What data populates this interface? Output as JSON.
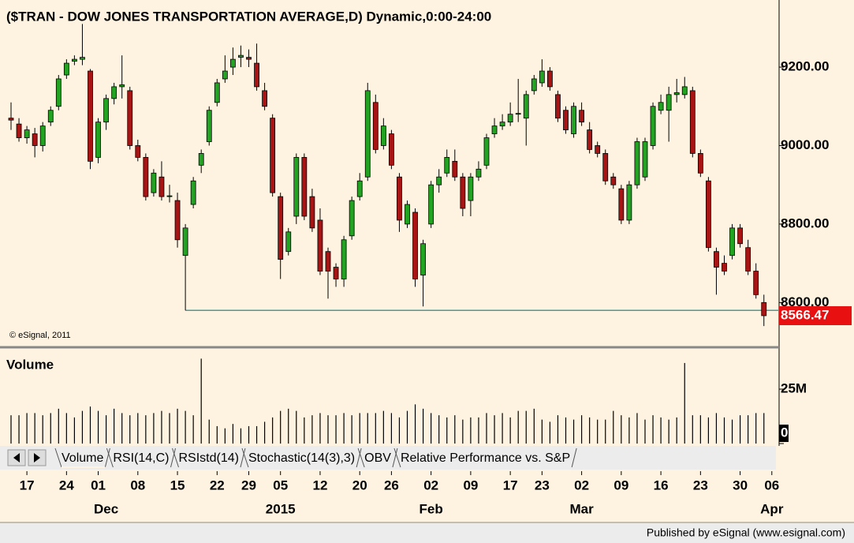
{
  "chart_data": {
    "type": "candlestick",
    "title": "($TRAN - DOW JONES TRANSPORTATION AVERAGE,D) Dynamic,0:00-24:00",
    "copyright": "© eSignal, 2011",
    "up_color": "#22a322",
    "down_color": "#a81414",
    "ylim": [
      8490,
      9355
    ],
    "yticks": [
      {
        "value": 8600,
        "label": "8600.00"
      },
      {
        "value": 8800,
        "label": "8800.00"
      },
      {
        "value": 9000,
        "label": "9000.00"
      },
      {
        "value": 9200,
        "label": "9200.00"
      }
    ],
    "last_price": 8566.47,
    "hline": 8580,
    "candles": [
      [
        9070,
        9110,
        9040,
        9065
      ],
      [
        9055,
        9070,
        9010,
        9020
      ],
      [
        9020,
        9050,
        9005,
        9040
      ],
      [
        9030,
        9045,
        8970,
        9000
      ],
      [
        9000,
        9060,
        8985,
        9050
      ],
      [
        9060,
        9100,
        9050,
        9090
      ],
      [
        9100,
        9180,
        9090,
        9170
      ],
      [
        9180,
        9220,
        9170,
        9210
      ],
      [
        9215,
        9230,
        9205,
        9220
      ],
      [
        9220,
        9310,
        9205,
        9225
      ],
      [
        9190,
        9195,
        8940,
        8960
      ],
      [
        8970,
        9070,
        8955,
        9060
      ],
      [
        9060,
        9130,
        9040,
        9120
      ],
      [
        9120,
        9160,
        9105,
        9150
      ],
      [
        9150,
        9230,
        9120,
        9155
      ],
      [
        9140,
        9150,
        8990,
        9000
      ],
      [
        9000,
        9015,
        8960,
        8970
      ],
      [
        8970,
        8980,
        8860,
        8870
      ],
      [
        8880,
        8940,
        8870,
        8930
      ],
      [
        8920,
        8960,
        8860,
        8870
      ],
      [
        8870,
        8900,
        8855,
        8872
      ],
      [
        8860,
        8880,
        8740,
        8760
      ],
      [
        8720,
        8800,
        8580,
        8790
      ],
      [
        8850,
        8920,
        8840,
        8910
      ],
      [
        8950,
        8990,
        8930,
        8980
      ],
      [
        9010,
        9100,
        9000,
        9090
      ],
      [
        9110,
        9170,
        9100,
        9160
      ],
      [
        9170,
        9230,
        9160,
        9190
      ],
      [
        9200,
        9250,
        9180,
        9220
      ],
      [
        9225,
        9255,
        9200,
        9230
      ],
      [
        9225,
        9245,
        9200,
        9220
      ],
      [
        9210,
        9260,
        9140,
        9150
      ],
      [
        9140,
        9160,
        9090,
        9100
      ],
      [
        9070,
        9080,
        8870,
        8880
      ],
      [
        8870,
        8880,
        8660,
        8710
      ],
      [
        8730,
        8790,
        8720,
        8780
      ],
      [
        8820,
        8980,
        8800,
        8970
      ],
      [
        8970,
        8980,
        8810,
        8820
      ],
      [
        8870,
        8890,
        8780,
        8790
      ],
      [
        8810,
        8840,
        8670,
        8680
      ],
      [
        8730,
        8740,
        8610,
        8680
      ],
      [
        8690,
        8700,
        8640,
        8660
      ],
      [
        8660,
        8770,
        8640,
        8760
      ],
      [
        8770,
        8870,
        8760,
        8860
      ],
      [
        8870,
        8930,
        8860,
        8910
      ],
      [
        8920,
        9160,
        8910,
        9140
      ],
      [
        9110,
        9130,
        8980,
        8990
      ],
      [
        9000,
        9070,
        8990,
        9050
      ],
      [
        9030,
        9040,
        8940,
        8950
      ],
      [
        8920,
        8930,
        8780,
        8810
      ],
      [
        8800,
        8860,
        8790,
        8850
      ],
      [
        8830,
        8840,
        8640,
        8660
      ],
      [
        8670,
        8760,
        8590,
        8750
      ],
      [
        8800,
        8910,
        8790,
        8900
      ],
      [
        8900,
        8940,
        8880,
        8920
      ],
      [
        8930,
        8990,
        8920,
        8970
      ],
      [
        8960,
        8990,
        8910,
        8920
      ],
      [
        8920,
        8930,
        8820,
        8840
      ],
      [
        8860,
        8930,
        8820,
        8920
      ],
      [
        8920,
        8960,
        8910,
        8940
      ],
      [
        8950,
        9030,
        8940,
        9020
      ],
      [
        9030,
        9070,
        9020,
        9050
      ],
      [
        9050,
        9080,
        9040,
        9060
      ],
      [
        9060,
        9110,
        9050,
        9080
      ],
      [
        9080,
        9170,
        9060,
        9082
      ],
      [
        9070,
        9140,
        9000,
        9130
      ],
      [
        9140,
        9180,
        9130,
        9170
      ],
      [
        9160,
        9220,
        9150,
        9190
      ],
      [
        9190,
        9200,
        9140,
        9150
      ],
      [
        9130,
        9140,
        9060,
        9070
      ],
      [
        9090,
        9100,
        9030,
        9040
      ],
      [
        9030,
        9110,
        9020,
        9100
      ],
      [
        9090,
        9110,
        9050,
        9060
      ],
      [
        9040,
        9060,
        8980,
        8990
      ],
      [
        9000,
        9010,
        8970,
        8980
      ],
      [
        8980,
        8990,
        8900,
        8910
      ],
      [
        8920,
        8930,
        8890,
        8900
      ],
      [
        8890,
        8900,
        8800,
        8810
      ],
      [
        8810,
        8910,
        8800,
        8900
      ],
      [
        8900,
        9020,
        8890,
        9010
      ],
      [
        8920,
        9020,
        8910,
        9010
      ],
      [
        9000,
        9110,
        8990,
        9100
      ],
      [
        9090,
        9130,
        9080,
        9110
      ],
      [
        9090,
        9150,
        9010,
        9130
      ],
      [
        9130,
        9170,
        9110,
        9135
      ],
      [
        9130,
        9175,
        9120,
        9150
      ],
      [
        9140,
        9150,
        8970,
        8980
      ],
      [
        8980,
        8990,
        8920,
        8930
      ],
      [
        8910,
        8920,
        8730,
        8740
      ],
      [
        8730,
        8740,
        8620,
        8690
      ],
      [
        8700,
        8720,
        8670,
        8680
      ],
      [
        8720,
        8800,
        8710,
        8790
      ],
      [
        8790,
        8800,
        8740,
        8750
      ],
      [
        8740,
        8760,
        8670,
        8680
      ],
      [
        8680,
        8700,
        8610,
        8620
      ],
      [
        8600,
        8620,
        8540,
        8566.47
      ]
    ],
    "xticks": [
      {
        "value": 2,
        "label": "17"
      },
      {
        "value": 7,
        "label": "24"
      },
      {
        "value": 11,
        "label": "01"
      },
      {
        "value": 16,
        "label": "08"
      },
      {
        "value": 21,
        "label": "15"
      },
      {
        "value": 26,
        "label": "22"
      },
      {
        "value": 30,
        "label": "29"
      },
      {
        "value": 34,
        "label": "05"
      },
      {
        "value": 39,
        "label": "12"
      },
      {
        "value": 44,
        "label": "20"
      },
      {
        "value": 48,
        "label": "26"
      },
      {
        "value": 53,
        "label": "02"
      },
      {
        "value": 58,
        "label": "09"
      },
      {
        "value": 63,
        "label": "17"
      },
      {
        "value": 67,
        "label": "23"
      },
      {
        "value": 72,
        "label": "02"
      },
      {
        "value": 77,
        "label": "09"
      },
      {
        "value": 82,
        "label": "16"
      },
      {
        "value": 87,
        "label": "23"
      },
      {
        "value": 92,
        "label": "30"
      },
      {
        "value": 96,
        "label": "06"
      }
    ],
    "month_labels": [
      {
        "value": 12,
        "label": "Dec"
      },
      {
        "value": 34,
        "label": "2015"
      },
      {
        "value": 53,
        "label": "Feb"
      },
      {
        "value": 72,
        "label": "Mar"
      },
      {
        "value": 96,
        "label": "Apr"
      }
    ],
    "volume": {
      "title": "Volume",
      "color": "#000000",
      "ylim": [
        0,
        40.6
      ],
      "yticks": [
        {
          "value": 25,
          "label": "25M"
        },
        0
      ],
      "values": [
        13,
        13,
        14,
        14,
        13,
        14,
        16,
        14,
        12,
        15,
        17,
        15,
        13,
        16,
        14,
        13,
        14,
        13,
        14,
        15,
        14,
        16,
        15,
        13,
        39,
        11,
        8,
        7,
        9,
        7,
        8,
        8,
        10,
        12,
        15,
        16,
        15,
        12,
        13,
        14,
        13,
        13,
        14,
        13,
        14,
        14,
        14,
        15,
        14,
        12,
        15,
        18,
        16,
        14,
        13,
        12,
        13,
        11,
        12,
        12,
        14,
        13,
        14,
        12,
        15,
        15,
        16,
        11,
        10,
        13,
        12,
        11,
        13,
        12,
        11,
        11,
        15,
        13,
        12,
        14,
        11,
        13,
        12,
        11,
        12,
        37,
        13,
        13,
        12,
        14,
        12,
        11,
        13,
        13,
        14,
        14
      ]
    }
  },
  "tabs": [
    "Volume",
    "RSI(14,C)",
    "RSIstd(14)",
    "Stochastic(14(3),3)",
    "OBV",
    "Relative Performance vs. S&P"
  ],
  "footer": "Published by eSignal (www.esignal.com)"
}
